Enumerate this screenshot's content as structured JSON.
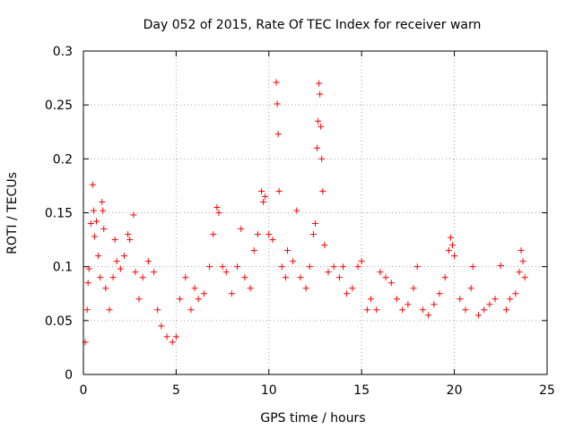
{
  "chart_data": {
    "type": "scatter",
    "title": "Day 052 of 2015, Rate Of TEC Index for receiver warn",
    "xlabel": "GPS time / hours",
    "ylabel": "ROTI / TECUs",
    "xlim": [
      0,
      25
    ],
    "ylim": [
      0,
      0.3
    ],
    "xticks": [
      0,
      5,
      10,
      15,
      20,
      25
    ],
    "xtick_labels": [
      "0",
      "5",
      "10",
      "15",
      "20",
      "25"
    ],
    "yticks": [
      0,
      0.05,
      0.1,
      0.15,
      0.2,
      0.25,
      0.3
    ],
    "ytick_labels": [
      "0",
      "0.05",
      "0.1",
      "0.15",
      "0.2",
      "0.25",
      "0.3"
    ],
    "grid": true,
    "marker": "+",
    "color": "#ff0000",
    "series": [
      {
        "name": "ROTI",
        "points": [
          [
            0.1,
            0.03
          ],
          [
            0.2,
            0.06
          ],
          [
            0.25,
            0.085
          ],
          [
            0.3,
            0.098
          ],
          [
            0.4,
            0.14
          ],
          [
            0.5,
            0.176
          ],
          [
            0.55,
            0.152
          ],
          [
            0.6,
            0.128
          ],
          [
            0.7,
            0.142
          ],
          [
            0.8,
            0.11
          ],
          [
            0.9,
            0.09
          ],
          [
            1.0,
            0.16
          ],
          [
            1.05,
            0.152
          ],
          [
            1.1,
            0.135
          ],
          [
            1.2,
            0.08
          ],
          [
            1.4,
            0.06
          ],
          [
            1.6,
            0.09
          ],
          [
            1.7,
            0.125
          ],
          [
            1.8,
            0.105
          ],
          [
            2.0,
            0.098
          ],
          [
            2.2,
            0.11
          ],
          [
            2.4,
            0.13
          ],
          [
            2.5,
            0.125
          ],
          [
            2.7,
            0.148
          ],
          [
            2.8,
            0.095
          ],
          [
            3.0,
            0.07
          ],
          [
            3.2,
            0.09
          ],
          [
            3.5,
            0.105
          ],
          [
            3.8,
            0.095
          ],
          [
            4.0,
            0.06
          ],
          [
            4.2,
            0.045
          ],
          [
            4.5,
            0.035
          ],
          [
            4.8,
            0.03
          ],
          [
            5.0,
            0.035
          ],
          [
            5.2,
            0.07
          ],
          [
            5.5,
            0.09
          ],
          [
            5.8,
            0.06
          ],
          [
            6.0,
            0.08
          ],
          [
            6.2,
            0.07
          ],
          [
            6.5,
            0.075
          ],
          [
            6.8,
            0.1
          ],
          [
            7.0,
            0.13
          ],
          [
            7.2,
            0.155
          ],
          [
            7.3,
            0.15
          ],
          [
            7.5,
            0.1
          ],
          [
            7.7,
            0.095
          ],
          [
            8.0,
            0.075
          ],
          [
            8.3,
            0.1
          ],
          [
            8.5,
            0.135
          ],
          [
            8.7,
            0.09
          ],
          [
            9.0,
            0.08
          ],
          [
            9.2,
            0.115
          ],
          [
            9.4,
            0.13
          ],
          [
            9.6,
            0.17
          ],
          [
            9.7,
            0.16
          ],
          [
            9.8,
            0.165
          ],
          [
            10.0,
            0.13
          ],
          [
            10.2,
            0.125
          ],
          [
            10.4,
            0.271
          ],
          [
            10.45,
            0.251
          ],
          [
            10.5,
            0.223
          ],
          [
            10.55,
            0.17
          ],
          [
            10.7,
            0.1
          ],
          [
            10.9,
            0.09
          ],
          [
            11.0,
            0.115
          ],
          [
            11.3,
            0.105
          ],
          [
            11.5,
            0.152
          ],
          [
            11.7,
            0.09
          ],
          [
            12.0,
            0.08
          ],
          [
            12.2,
            0.1
          ],
          [
            12.4,
            0.13
          ],
          [
            12.5,
            0.14
          ],
          [
            12.6,
            0.21
          ],
          [
            12.65,
            0.235
          ],
          [
            12.7,
            0.27
          ],
          [
            12.75,
            0.26
          ],
          [
            12.8,
            0.23
          ],
          [
            12.85,
            0.2
          ],
          [
            12.9,
            0.17
          ],
          [
            13.0,
            0.12
          ],
          [
            13.2,
            0.095
          ],
          [
            13.5,
            0.1
          ],
          [
            13.8,
            0.09
          ],
          [
            14.0,
            0.1
          ],
          [
            14.2,
            0.075
          ],
          [
            14.5,
            0.08
          ],
          [
            14.8,
            0.1
          ],
          [
            15.0,
            0.105
          ],
          [
            15.3,
            0.06
          ],
          [
            15.5,
            0.07
          ],
          [
            15.8,
            0.06
          ],
          [
            16.0,
            0.095
          ],
          [
            16.3,
            0.09
          ],
          [
            16.6,
            0.085
          ],
          [
            16.9,
            0.07
          ],
          [
            17.2,
            0.06
          ],
          [
            17.5,
            0.065
          ],
          [
            17.8,
            0.08
          ],
          [
            18.0,
            0.1
          ],
          [
            18.3,
            0.06
          ],
          [
            18.6,
            0.055
          ],
          [
            18.9,
            0.065
          ],
          [
            19.2,
            0.075
          ],
          [
            19.5,
            0.09
          ],
          [
            19.7,
            0.115
          ],
          [
            19.8,
            0.127
          ],
          [
            19.9,
            0.12
          ],
          [
            20.0,
            0.11
          ],
          [
            20.3,
            0.07
          ],
          [
            20.6,
            0.06
          ],
          [
            20.9,
            0.08
          ],
          [
            21.0,
            0.1
          ],
          [
            21.3,
            0.055
          ],
          [
            21.6,
            0.06
          ],
          [
            21.9,
            0.065
          ],
          [
            22.2,
            0.07
          ],
          [
            22.5,
            0.101
          ],
          [
            22.8,
            0.06
          ],
          [
            23.0,
            0.07
          ],
          [
            23.3,
            0.075
          ],
          [
            23.5,
            0.095
          ],
          [
            23.6,
            0.115
          ],
          [
            23.7,
            0.105
          ],
          [
            23.8,
            0.09
          ]
        ]
      }
    ]
  }
}
